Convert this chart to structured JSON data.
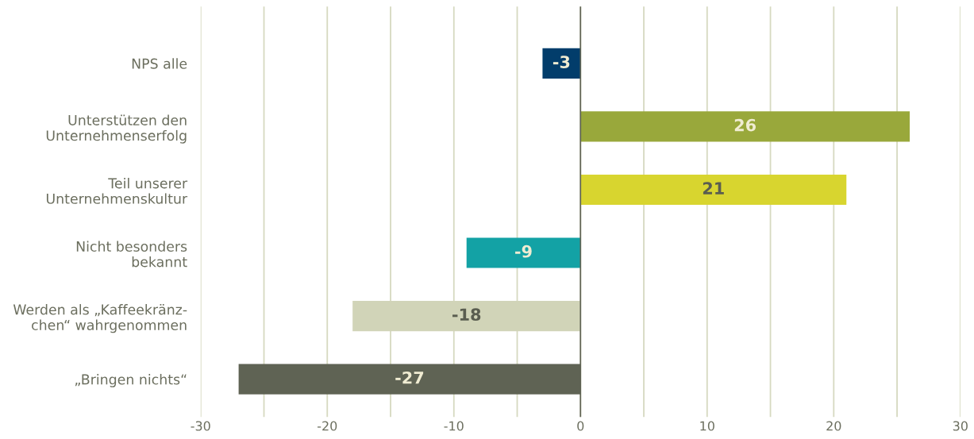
{
  "chart_data": {
    "type": "bar",
    "orientation": "horizontal",
    "categories": [
      "NPS alle",
      "Unterstützen den\nUnternehmenserfolg",
      "Teil unserer\nUnternehmenskultur",
      "Nicht besonders\nbekannt",
      "Werden als „Kaffeekränz-\nchen“ wahrgenommen",
      "„Bringen nichts“"
    ],
    "values": [
      -3,
      26,
      21,
      -9,
      -18,
      -27
    ],
    "colors": [
      "#023d6b",
      "#99a83b",
      "#d8d52f",
      "#13a2a5",
      "#d1d4b8",
      "#5f6354"
    ],
    "data_labels": true,
    "xlim": [
      -30,
      30
    ],
    "xticks": [
      -30,
      {
        "value": -25,
        "label": null
      },
      -20,
      {
        "value": -15,
        "label": null
      },
      -10,
      {
        "value": -5,
        "label": null
      },
      0,
      {
        "value": 5,
        "label": null
      },
      10,
      {
        "value": 15,
        "label": null
      },
      20,
      {
        "value": 25,
        "label": null
      },
      30
    ],
    "grid": "x",
    "ref_lines": [
      {
        "axis": "x",
        "value": 0,
        "label": null,
        "color": "#5f6354"
      }
    ]
  }
}
